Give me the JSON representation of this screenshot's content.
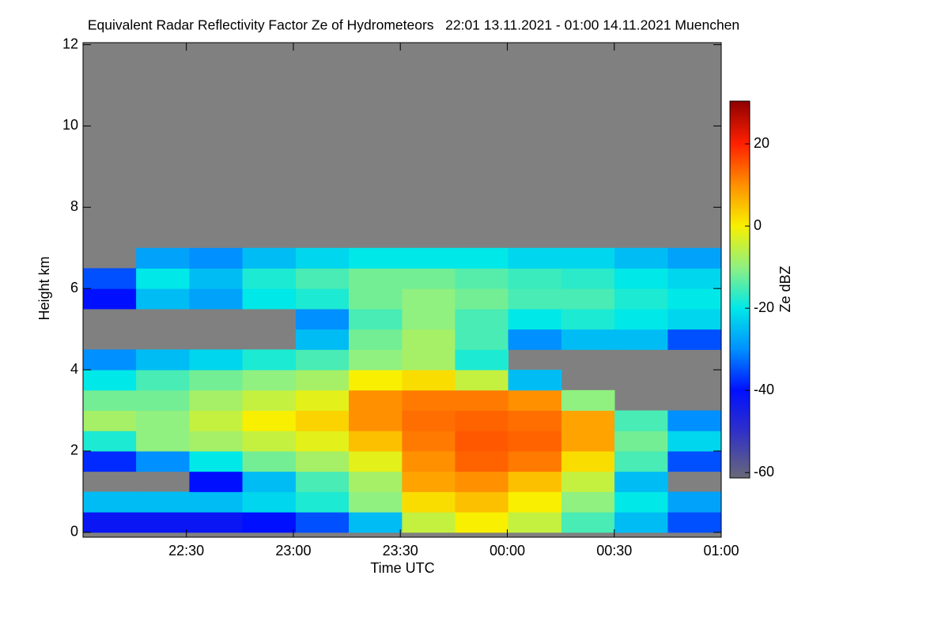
{
  "chart_data": {
    "type": "heatmap",
    "title": "Equivalent Radar Reflectivity Factor Ze of Hydrometeors   22:01 13.11.2021 - 01:00 14.11.2021 Muenchen",
    "xlabel": "Time UTC",
    "ylabel": "Height km",
    "colorbar_label": "Ze dBZ",
    "x_bins": [
      22.017,
      22.265,
      22.514,
      22.762,
      23.011,
      23.259,
      23.508,
      23.756,
      24.004,
      24.253,
      24.501,
      24.75,
      25.0
    ],
    "y_bins": [
      0,
      0.5,
      1,
      1.5,
      2,
      2.5,
      3,
      3.5,
      4,
      4.5,
      5,
      5.5,
      6,
      6.5,
      7
    ],
    "z": [
      [
        -42,
        -42,
        -42,
        -40,
        -35,
        -25,
        -5,
        0,
        -5,
        -15,
        -25,
        -35
      ],
      [
        -25,
        -25,
        -25,
        -22,
        -18,
        -10,
        2,
        5,
        0,
        -10,
        -20,
        -28
      ],
      [
        null,
        null,
        -40,
        -25,
        -15,
        -8,
        8,
        10,
        5,
        -5,
        -25,
        null
      ],
      [
        -38,
        -30,
        -20,
        -12,
        -8,
        -2,
        10,
        14,
        12,
        2,
        -15,
        -35
      ],
      [
        -18,
        -10,
        -8,
        -5,
        -2,
        5,
        12,
        15,
        14,
        8,
        -12,
        -22
      ],
      [
        -8,
        -10,
        -5,
        0,
        3,
        10,
        13,
        14,
        13,
        8,
        -15,
        -30
      ],
      [
        -12,
        -12,
        -8,
        -5,
        -2,
        10,
        12,
        12,
        10,
        -10,
        null,
        null
      ],
      [
        -20,
        -15,
        -12,
        -10,
        -8,
        0,
        2,
        -5,
        -25,
        null,
        null,
        null
      ],
      [
        -30,
        -25,
        -22,
        -18,
        -15,
        -10,
        -8,
        -18,
        null,
        null,
        null,
        null
      ],
      [
        null,
        null,
        null,
        null,
        -25,
        -12,
        -8,
        -15,
        -30,
        -25,
        -25,
        -35
      ],
      [
        null,
        null,
        null,
        null,
        -30,
        -15,
        -10,
        -15,
        -20,
        -18,
        -20,
        -22
      ],
      [
        -40,
        -25,
        -28,
        -20,
        -18,
        -12,
        -10,
        -12,
        -15,
        -15,
        -18,
        -20
      ],
      [
        -35,
        -20,
        -25,
        -18,
        -15,
        -12,
        -12,
        -14,
        -16,
        -17,
        -20,
        -22
      ],
      [
        null,
        -28,
        -30,
        -25,
        -22,
        -20,
        -20,
        -20,
        -22,
        -22,
        -25,
        -28
      ]
    ],
    "xlim": [
      22.017,
      25.0
    ],
    "xticks": [
      {
        "value": 22.5,
        "label": "22:30"
      },
      {
        "value": 23,
        "label": "23:00"
      },
      {
        "value": 23.5,
        "label": "23:30"
      },
      {
        "value": 24,
        "label": "00:00"
      },
      {
        "value": 24.5,
        "label": "00:30"
      },
      {
        "value": 25,
        "label": "01:00"
      }
    ],
    "ylim": [
      -0.12,
      12.05
    ],
    "yticks": [
      0,
      2,
      4,
      6,
      8,
      10,
      12
    ],
    "zlim": [
      -61.3,
      30.4
    ],
    "zticks": [
      -60,
      -40,
      -20,
      0,
      20
    ],
    "background_color": "#808080",
    "colormap": [
      {
        "value": -61.3,
        "color": "#686878"
      },
      {
        "value": -50,
        "color": "#3030c8"
      },
      {
        "value": -40,
        "color": "#0010ff"
      },
      {
        "value": -30,
        "color": "#0090ff"
      },
      {
        "value": -20,
        "color": "#00e8e8"
      },
      {
        "value": -10,
        "color": "#90f080"
      },
      {
        "value": 0,
        "color": "#f8f000"
      },
      {
        "value": 10,
        "color": "#ff9000"
      },
      {
        "value": 20,
        "color": "#ff2000"
      },
      {
        "value": 30.4,
        "color": "#900000"
      }
    ]
  }
}
